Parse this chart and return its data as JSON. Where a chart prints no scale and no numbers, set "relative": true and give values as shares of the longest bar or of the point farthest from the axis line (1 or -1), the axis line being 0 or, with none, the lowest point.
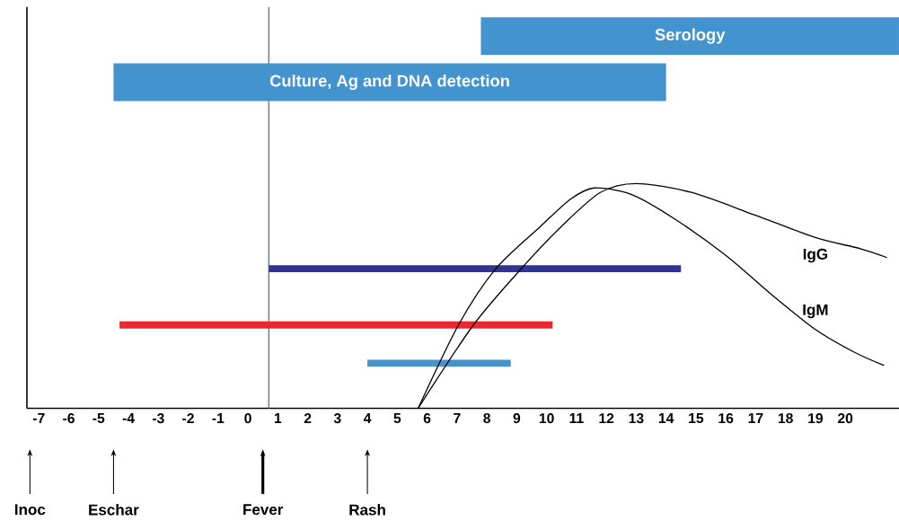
{
  "chart_data": {
    "type": "line",
    "relative": true,
    "xlim": [
      -7.4,
      21.8
    ],
    "xticks": [
      -7,
      -6,
      -5,
      -4,
      -3,
      -2,
      -1,
      0,
      1,
      2,
      3,
      4,
      5,
      6,
      7,
      8,
      9,
      10,
      11,
      12,
      13,
      14,
      15,
      16,
      17,
      18,
      19,
      20
    ],
    "series": [
      {
        "name": "Serology",
        "color": "#4393cf",
        "x": [
          7.8,
          21.8
        ],
        "values": [
          1,
          1
        ]
      },
      {
        "name": "Culture, Ag and DNA detection",
        "color": "#4393cf",
        "x": [
          -4.5,
          14.0
        ],
        "values": [
          0.876,
          0.876
        ]
      },
      {
        "name": "IgG",
        "color": "#000000",
        "x": [
          5.7,
          7.55,
          9.15,
          10.5,
          11.8,
          13.0,
          14.85,
          16.95,
          19.0,
          20.5,
          21.4
        ],
        "values": [
          0,
          0.224,
          0.375,
          0.489,
          0.58,
          0.604,
          0.58,
          0.52,
          0.459,
          0.429,
          0.405
        ]
      },
      {
        "name": "IgM",
        "color": "#000000",
        "x": [
          5.7,
          7.05,
          8.3,
          9.8,
          10.8,
          11.6,
          12.85,
          14.3,
          16.0,
          17.5,
          19.0,
          20.3,
          21.3
        ],
        "values": [
          0,
          0.224,
          0.375,
          0.489,
          0.562,
          0.592,
          0.574,
          0.508,
          0.411,
          0.308,
          0.212,
          0.151,
          0.115
        ]
      },
      {
        "color": "#2e3690",
        "x": [
          0.7,
          14.5
        ],
        "values": [
          0.375,
          0.375
        ]
      },
      {
        "color": "#ec2730",
        "x": [
          -4.3,
          10.2
        ],
        "values": [
          0.224,
          0.224
        ]
      },
      {
        "color": "#4393cf",
        "x": [
          4.0,
          8.8
        ],
        "values": [
          0.121,
          0.121
        ]
      }
    ],
    "ref_lines": [
      {
        "axis": "x",
        "value": 0.7,
        "color": "#808080"
      }
    ],
    "annotations": [
      "Inoc",
      "Eschar",
      "Fever",
      "Rash"
    ]
  }
}
